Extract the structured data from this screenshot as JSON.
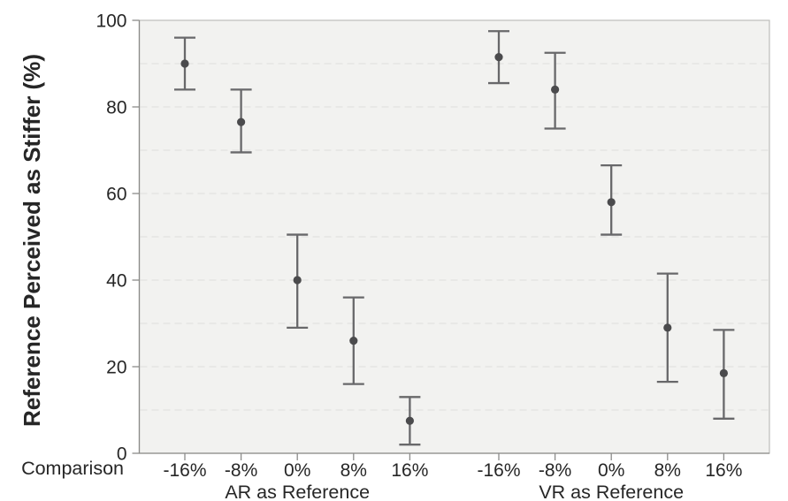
{
  "chart_data": {
    "type": "errorbar",
    "title": "",
    "ylabel": "Reference Perceived as Stiffer (%)",
    "xlabel": "Comparison",
    "ylim": [
      0,
      100
    ],
    "y_ticks": [
      0,
      20,
      40,
      60,
      80,
      100
    ],
    "gridline_step": 10,
    "grid": "horizontal-dashed",
    "legend": "none",
    "groups": [
      {
        "label": "AR as Reference",
        "categories": [
          "-16%",
          "-8%",
          "0%",
          "8%",
          "16%"
        ],
        "means": [
          90,
          76.5,
          40,
          26,
          7.5
        ],
        "ci_low": [
          84,
          69.5,
          29,
          16,
          2
        ],
        "ci_high": [
          96,
          84,
          50.5,
          36,
          13
        ]
      },
      {
        "label": "VR as Reference",
        "categories": [
          "-16%",
          "-8%",
          "0%",
          "8%",
          "16%"
        ],
        "means": [
          91.5,
          84,
          58,
          29,
          18.5
        ],
        "ci_low": [
          85.5,
          75,
          50.5,
          16.5,
          8
        ],
        "ci_high": [
          97.5,
          92.5,
          66.5,
          41.5,
          28.5
        ]
      }
    ],
    "colors": {
      "page_bg": "#ffffff",
      "plot_bg": "#f2f2f0",
      "gridline": "#e2e2df",
      "border": "#bdbdba",
      "axis": "#8c8c8a",
      "tick": "#8c8c8a",
      "error_bar": "#68686a",
      "marker": "#4b4b4d",
      "text": "#262626"
    }
  }
}
